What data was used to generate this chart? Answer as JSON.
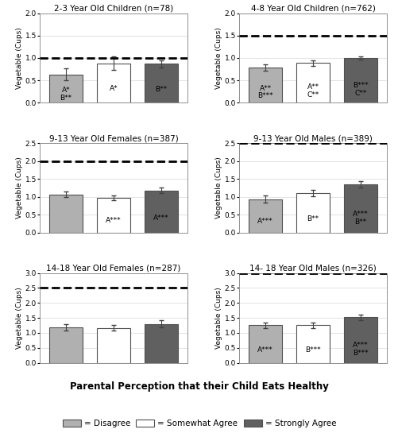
{
  "subplots": [
    {
      "title": "2-3 Year Old Children (n=78)",
      "ylim": [
        0,
        2.0
      ],
      "yticks": [
        0.0,
        0.5,
        1.0,
        1.5,
        2.0
      ],
      "dashed_line": 1.0,
      "bars": [
        0.63,
        0.88,
        0.87
      ],
      "errors": [
        0.13,
        0.15,
        0.08
      ],
      "labels": [
        "A*\nB**",
        "A*",
        "B**"
      ]
    },
    {
      "title": "4-8 Year Old Children (n=762)",
      "ylim": [
        0,
        2.0
      ],
      "yticks": [
        0.0,
        0.5,
        1.0,
        1.5,
        2.0
      ],
      "dashed_line": 1.5,
      "bars": [
        0.78,
        0.89,
        1.0
      ],
      "errors": [
        0.07,
        0.06,
        0.04
      ],
      "labels": [
        "A**\nB***",
        "A**\nC**",
        "B***\nC**"
      ]
    },
    {
      "title": "9-13 Year Old Females (n=387)",
      "ylim": [
        0,
        2.5
      ],
      "yticks": [
        0.0,
        0.5,
        1.0,
        1.5,
        2.0,
        2.5
      ],
      "dashed_line": 2.0,
      "bars": [
        1.07,
        0.97,
        1.18
      ],
      "errors": [
        0.08,
        0.07,
        0.08
      ],
      "labels": [
        "",
        "A***",
        "A***"
      ]
    },
    {
      "title": "9-13 Year Old Males (n=389)",
      "ylim": [
        0,
        2.5
      ],
      "yticks": [
        0.0,
        0.5,
        1.0,
        1.5,
        2.0,
        2.5
      ],
      "dashed_line": 2.5,
      "bars": [
        0.93,
        1.1,
        1.35
      ],
      "errors": [
        0.1,
        0.09,
        0.09
      ],
      "labels": [
        "A***",
        "B**",
        "A***\nB**"
      ]
    },
    {
      "title": "14-18 Year Old Females (n=287)",
      "ylim": [
        0,
        3.0
      ],
      "yticks": [
        0.0,
        0.5,
        1.0,
        1.5,
        2.0,
        2.5,
        3.0
      ],
      "dashed_line": 2.5,
      "bars": [
        1.18,
        1.17,
        1.3
      ],
      "errors": [
        0.1,
        0.08,
        0.12
      ],
      "labels": [
        "",
        "",
        ""
      ]
    },
    {
      "title": "14- 18 Year Old Males (n=326)",
      "ylim": [
        0,
        3.0
      ],
      "yticks": [
        0.0,
        0.5,
        1.0,
        1.5,
        2.0,
        2.5,
        3.0
      ],
      "dashed_line": 3.0,
      "bars": [
        1.25,
        1.25,
        1.52
      ],
      "errors": [
        0.1,
        0.08,
        0.09
      ],
      "labels": [
        "A***",
        "B***",
        "A***\nB***"
      ]
    }
  ],
  "bar_colors": [
    "#b0b0b0",
    "#ffffff",
    "#606060"
  ],
  "bar_edgecolor": "#505050",
  "xlabel": "Parental Perception that their Child Eats Healthy",
  "ylabel": "Vegetable (Cups)",
  "legend_labels": [
    "= Disagree",
    "= Somewhat Agree",
    "= Strongly Agree"
  ],
  "legend_colors": [
    "#b0b0b0",
    "#ffffff",
    "#606060"
  ],
  "title_fontsize": 7.5,
  "label_fontsize": 6.5,
  "tick_fontsize": 6.5,
  "annot_fontsize": 6.5,
  "background_color": "#ffffff"
}
